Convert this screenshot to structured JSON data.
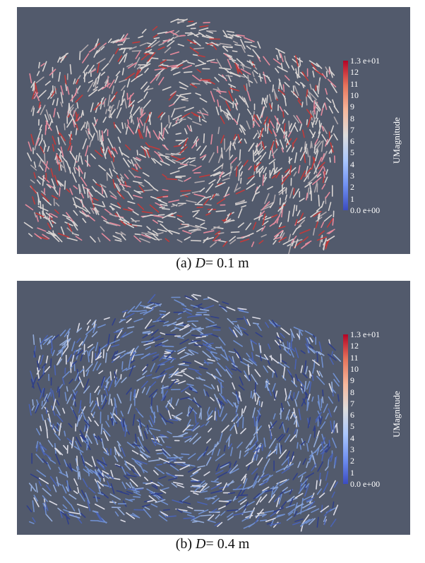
{
  "panels": [
    {
      "id": "a",
      "caption_prefix": "(a) ",
      "caption_var": "D",
      "caption_rest": "= 0.1 m",
      "legend": {
        "title": "UMagnitude",
        "max_label": "1.3 e+01",
        "min_label": "0.0 e+00",
        "ticks": [
          "12",
          "11",
          "10",
          "9",
          "8",
          "7",
          "6",
          "5",
          "4",
          "3",
          "2",
          "1"
        ]
      },
      "colors": {
        "background": "#525a6c",
        "dominant": "#d9d4d2",
        "accent": "#e58a9c"
      }
    },
    {
      "id": "b",
      "caption_prefix": "(b) ",
      "caption_var": "D",
      "caption_rest": "= 0.4 m",
      "legend": {
        "title": "UMagnitude",
        "max_label": "1.3 e+01",
        "min_label": "0.0 e+00",
        "ticks": [
          "12",
          "11",
          "10",
          "9",
          "8",
          "7",
          "6",
          "5",
          "4",
          "3",
          "2",
          "1"
        ]
      },
      "colors": {
        "background": "#525a6c",
        "dominant": "#6f8fcf",
        "accent": "#dcdce6"
      }
    }
  ],
  "colormap": [
    "#3b4cc0",
    "#6f90f2",
    "#aac7fd",
    "#dddddd",
    "#f7b89c",
    "#e7745b",
    "#b40426"
  ]
}
